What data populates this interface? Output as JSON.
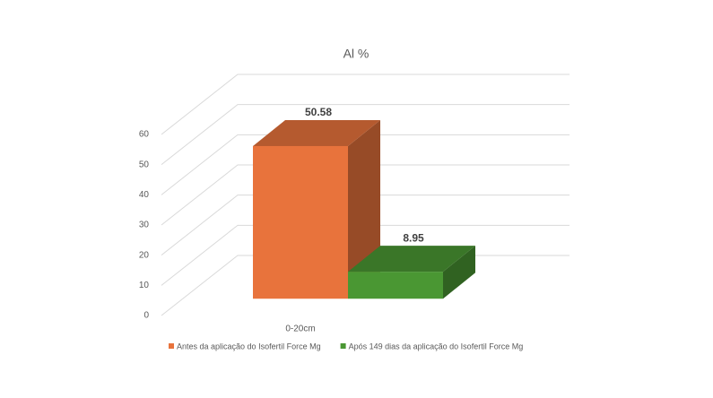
{
  "chart_data": {
    "type": "bar3d",
    "title": "Al %",
    "categories": [
      "0-20cm"
    ],
    "series": [
      {
        "name": "Antes da aplicação do Isofertil Force Mg",
        "color": "#E8733C",
        "values": [
          50.58
        ]
      },
      {
        "name": "Após 149 dias da aplicação do Isofertil Force Mg",
        "color": "#4A9733",
        "values": [
          8.95
        ]
      }
    ],
    "ylim": [
      0,
      60
    ],
    "yticks": [
      0,
      10,
      20,
      30,
      40,
      50,
      60
    ],
    "grid": true,
    "legend": "bottom"
  }
}
